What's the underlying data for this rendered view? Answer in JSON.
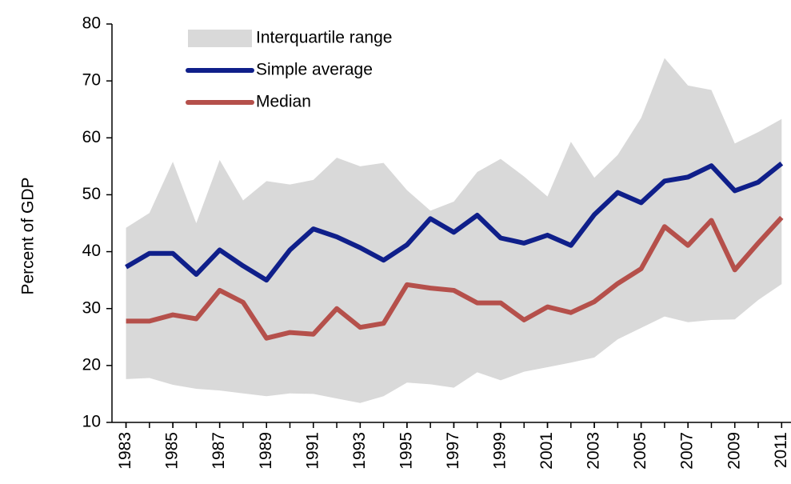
{
  "chart_data": {
    "type": "line",
    "y_label": "Percent of GDP",
    "x": [
      1983,
      1984,
      1985,
      1986,
      1987,
      1988,
      1989,
      1990,
      1991,
      1992,
      1993,
      1994,
      1995,
      1996,
      1997,
      1998,
      1999,
      2000,
      2001,
      2002,
      2003,
      2004,
      2005,
      2006,
      2007,
      2008,
      2009,
      2010,
      2011
    ],
    "xlim": [
      1982.4,
      2011.4
    ],
    "xticks": [
      1983,
      1985,
      1987,
      1989,
      1991,
      1993,
      1995,
      1997,
      1999,
      2001,
      2003,
      2005,
      2007,
      2009,
      2011
    ],
    "ylim": [
      10,
      80
    ],
    "yticks": [
      10,
      20,
      30,
      40,
      50,
      60,
      70,
      80
    ],
    "legend": "top-left",
    "series": [
      {
        "name": "Interquartile range",
        "type": "band",
        "color": "#d9d9d9",
        "upper": [
          44.2,
          46.8,
          55.8,
          45,
          56.1,
          49,
          52.4,
          51.8,
          52.6,
          56.5,
          55,
          55.6,
          50.8,
          47.2,
          48.8,
          54,
          56.3,
          53.2,
          49.7,
          59.3,
          53,
          57,
          63.5,
          74,
          69.2,
          68.4,
          59,
          61,
          63.3
        ],
        "lower": [
          17.6,
          17.8,
          16.6,
          15.9,
          15.6,
          15.1,
          14.6,
          15.1,
          15,
          14.2,
          13.4,
          14.6,
          17,
          16.7,
          16.1,
          18.8,
          17.4,
          18.9,
          19.7,
          20.5,
          21.4,
          24.6,
          26.6,
          28.6,
          27.6,
          28,
          28.1,
          31.5,
          34.3
        ]
      },
      {
        "name": "Simple average",
        "type": "line",
        "color": "#0f1f8a",
        "values": [
          37.3,
          39.7,
          39.7,
          36,
          40.3,
          37.5,
          35,
          40.3,
          44,
          42.6,
          40.7,
          38.5,
          41.2,
          45.8,
          43.4,
          46.4,
          42.4,
          41.5,
          42.9,
          41.1,
          46.5,
          50.4,
          48.6,
          52.4,
          53.1,
          55.1,
          50.7,
          52.2,
          55.5
        ]
      },
      {
        "name": "Median",
        "type": "line",
        "color": "#b5504b",
        "values": [
          27.8,
          27.8,
          28.9,
          28.2,
          33.2,
          31.1,
          24.8,
          25.8,
          25.5,
          30,
          26.7,
          27.4,
          34.2,
          33.6,
          33.2,
          31,
          31,
          28,
          30.3,
          29.3,
          31.2,
          34.4,
          37,
          44.4,
          41.1,
          45.5,
          36.8,
          41.5,
          46
        ]
      }
    ]
  }
}
